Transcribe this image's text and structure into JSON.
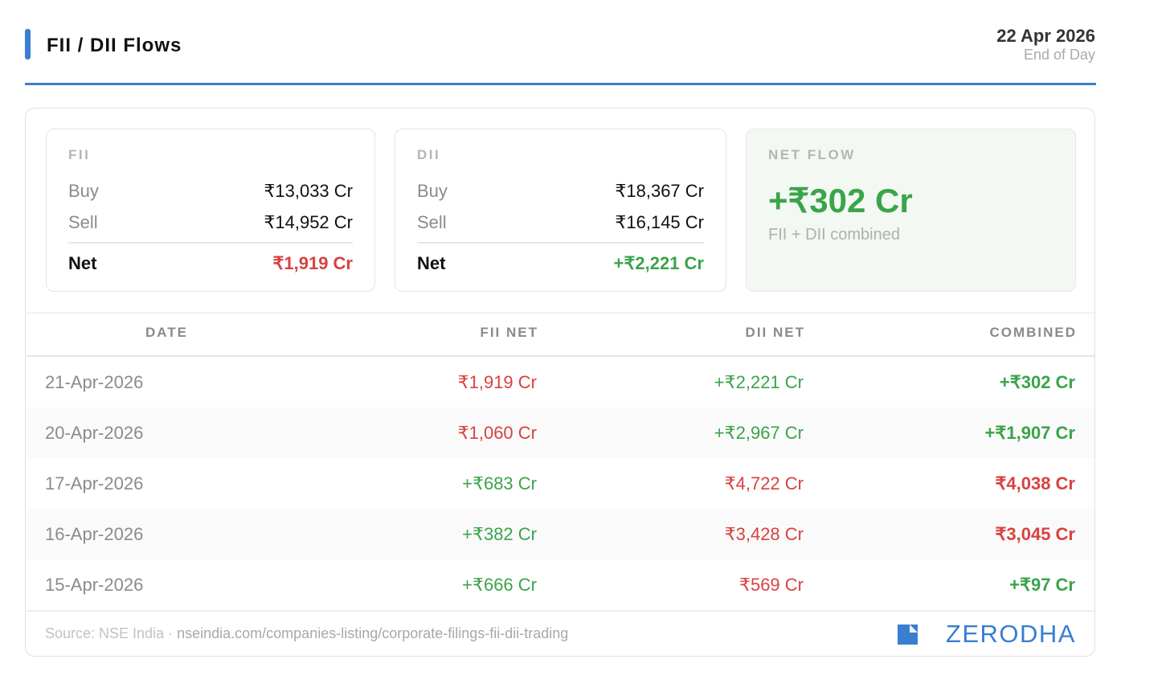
{
  "header": {
    "title": "FII / DII Flows",
    "date": "22 Apr 2026",
    "subtitle": "End of Day"
  },
  "summary": [
    {
      "label": "FII",
      "rows": [
        [
          "Buy",
          "₹13,033 Cr"
        ],
        [
          "Sell",
          "₹14,952 Cr"
        ]
      ],
      "net_label": "Net",
      "net": "₹1,919 Cr"
    },
    {
      "label": "DII",
      "rows": [
        [
          "Buy",
          "₹18,367 Cr"
        ],
        [
          "Sell",
          "₹16,145 Cr"
        ]
      ],
      "net_label": "Net",
      "net": "+₹2,221 Cr"
    }
  ],
  "net_flow": {
    "label": "NET FLOW",
    "value": "+₹302 Cr",
    "note": "FII + DII combined"
  },
  "table": {
    "columns": [
      "DATE",
      "FII NET",
      "DII NET",
      "COMBINED"
    ],
    "rows": [
      [
        "21-Apr-2026",
        "₹1,919 Cr",
        "+₹2,221 Cr",
        "+₹302 Cr"
      ],
      [
        "20-Apr-2026",
        "₹1,060 Cr",
        "+₹2,967 Cr",
        "+₹1,907 Cr"
      ],
      [
        "17-Apr-2026",
        "+₹683 Cr",
        "₹4,722 Cr",
        "₹4,038 Cr"
      ],
      [
        "16-Apr-2026",
        "+₹382 Cr",
        "₹3,428 Cr",
        "₹3,045 Cr"
      ],
      [
        "15-Apr-2026",
        "+₹666 Cr",
        "₹569 Cr",
        "+₹97 Cr"
      ]
    ]
  },
  "footer": {
    "source": "Source: NSE India",
    "separator": "·",
    "url": "nseindia.com/companies-listing/corporate-filings-fii-dii-trading",
    "brand": "ZERODHA"
  }
}
